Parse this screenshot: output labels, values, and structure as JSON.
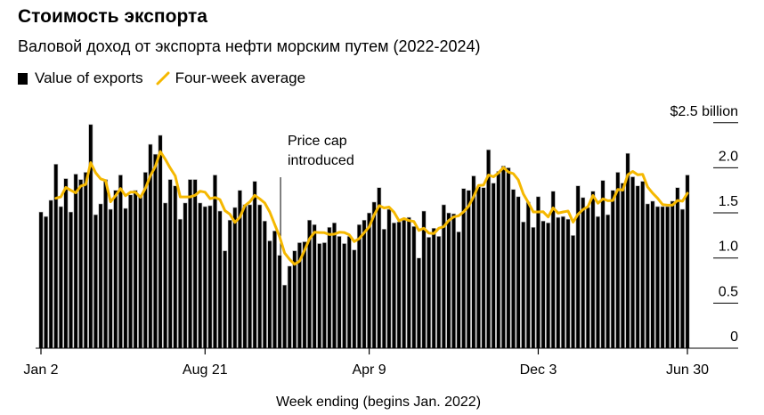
{
  "header": {
    "title": "Стоимость экспорта",
    "subtitle": "Валовой доход от экспорта нефти морским путем (2022-2024)"
  },
  "legend": {
    "bar_label": "Value of exports",
    "line_label": "Four-week average"
  },
  "colors": {
    "bars": "#000000",
    "line": "#f5b800"
  },
  "chart_data": {
    "type": "bar",
    "title": "Стоимость экспорта",
    "subtitle": "Валовой доход от экспорта нефти морским путем (2022-2024)",
    "xlabel": "Week ending (begins Jan. 2022)",
    "ylabel": "",
    "y_unit_label": "$2.5 billion",
    "ylim": [
      0,
      2.5
    ],
    "y_ticks": [
      "0",
      "0.5",
      "1.0",
      "1.5",
      "2.0",
      "$2.5 billion"
    ],
    "y_tick_values": [
      0,
      0.5,
      1.0,
      1.5,
      2.0,
      2.5
    ],
    "x_ticks": [
      {
        "label": "Jan 2",
        "week_index": 0
      },
      {
        "label": "Aug 21",
        "week_index": 33
      },
      {
        "label": "Apr 9",
        "week_index": 66
      },
      {
        "label": "Dec 3",
        "week_index": 100
      },
      {
        "label": "Jun 30",
        "week_index": 130
      }
    ],
    "grid": false,
    "legend_position": "top-left",
    "annotation": {
      "text_line1": "Price cap",
      "text_line2": "introduced",
      "week_index": 48
    },
    "series": [
      {
        "name": "Value of exports",
        "type": "bar",
        "values": [
          1.51,
          1.46,
          1.64,
          2.04,
          1.57,
          1.88,
          1.51,
          1.93,
          1.87,
          1.95,
          2.48,
          1.48,
          1.6,
          1.87,
          1.54,
          1.75,
          1.92,
          1.55,
          1.7,
          1.75,
          1.69,
          1.95,
          2.26,
          2.15,
          2.36,
          1.61,
          1.87,
          1.8,
          1.43,
          1.61,
          1.87,
          1.87,
          1.61,
          1.57,
          1.58,
          1.92,
          1.52,
          1.08,
          1.42,
          1.56,
          1.75,
          1.59,
          1.59,
          1.85,
          1.59,
          1.41,
          1.19,
          1.3,
          1.03,
          0.7,
          0.91,
          1.08,
          1.17,
          1.18,
          1.42,
          1.37,
          1.16,
          1.17,
          1.34,
          1.39,
          1.24,
          1.16,
          1.24,
          1.09,
          1.37,
          1.42,
          1.5,
          1.62,
          1.78,
          1.32,
          1.54,
          1.39,
          1.4,
          1.42,
          1.45,
          1.35,
          1.0,
          1.52,
          1.23,
          1.33,
          1.24,
          1.59,
          1.5,
          1.49,
          1.29,
          1.77,
          1.75,
          1.91,
          1.79,
          1.78,
          2.2,
          1.83,
          1.96,
          2.02,
          2.0,
          1.76,
          1.68,
          1.4,
          1.62,
          1.34,
          1.68,
          1.41,
          1.39,
          1.74,
          1.45,
          1.46,
          1.43,
          1.25,
          1.8,
          1.67,
          1.56,
          1.74,
          1.46,
          1.86,
          1.48,
          1.75,
          1.95,
          1.83,
          2.16,
          1.9,
          1.8,
          1.85,
          1.6,
          1.63,
          1.57,
          1.57,
          1.57,
          1.63,
          1.78,
          1.54,
          1.92
        ]
      },
      {
        "name": "Four-week average",
        "type": "line",
        "window_weeks": 4
      }
    ]
  }
}
